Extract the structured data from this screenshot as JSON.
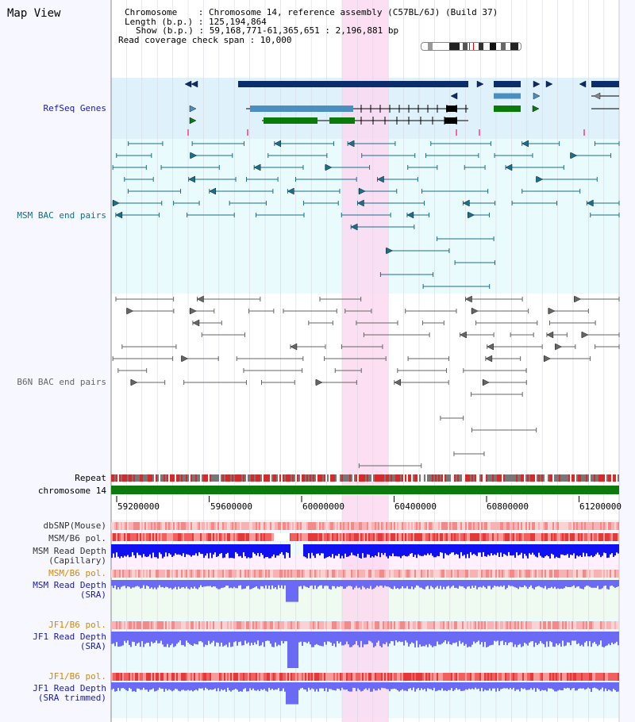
{
  "app": {
    "title": "Map View"
  },
  "info": {
    "chromosome": "Chromosome    : Chromosome 14, reference assembly (C57BL/6J) (Build 37)",
    "length": "Length (b.p.) : 125,194,864",
    "show": "Show (b.p.) : 59,168,771-61,365,651 : 2,196,881 bp",
    "span": "Read coverage check span : 10,000"
  },
  "colors": {
    "refseq_bg": "#dff2fc",
    "msm_bg": "#e9fbfd",
    "highlight": "#fbd9f1",
    "gene_dark": "#0c2d6b",
    "gene_mid": "#4a8fbf",
    "gene_green": "#0a7a0a",
    "bac_msm": "#1a6f8c",
    "bac_b6n": "#666666",
    "chrom_bar": "#0c7a0c",
    "depth_blue": "#1010f0",
    "depth_light": "#6a6af5"
  },
  "tracks": {
    "refseq": "RefSeq Genes",
    "msm_bac": "MSM BAC end pairs",
    "b6n_bac": "B6N BAC end pairs",
    "repeat": "Repeat",
    "chromosome": "chromosome 14",
    "dbsnp": "dbSNP(Mouse)",
    "msm_b6_pol_1": "MSM/B6 pol.",
    "msm_depth_cap_1": "MSM Read Depth",
    "msm_depth_cap_2": "(Capillary)",
    "msm_b6_pol_2": "MSM/B6 pol.",
    "msm_depth_sra_1": "MSM Read Depth",
    "msm_depth_sra_2": "(SRA)",
    "jf1_b6_pol_1": "JF1/B6 pol.",
    "jf1_depth_sra_1": "JF1 Read Depth",
    "jf1_depth_sra_2": "(SRA)",
    "jf1_b6_pol_2": "JF1/B6 pol.",
    "jf1_depth_trim_1": "JF1 Read Depth",
    "jf1_depth_trim_2": "(SRA trimmed)"
  },
  "scale": {
    "ticks": [
      "59200000",
      "59600000",
      "60000000",
      "60400000",
      "60800000",
      "61200000"
    ]
  }
}
